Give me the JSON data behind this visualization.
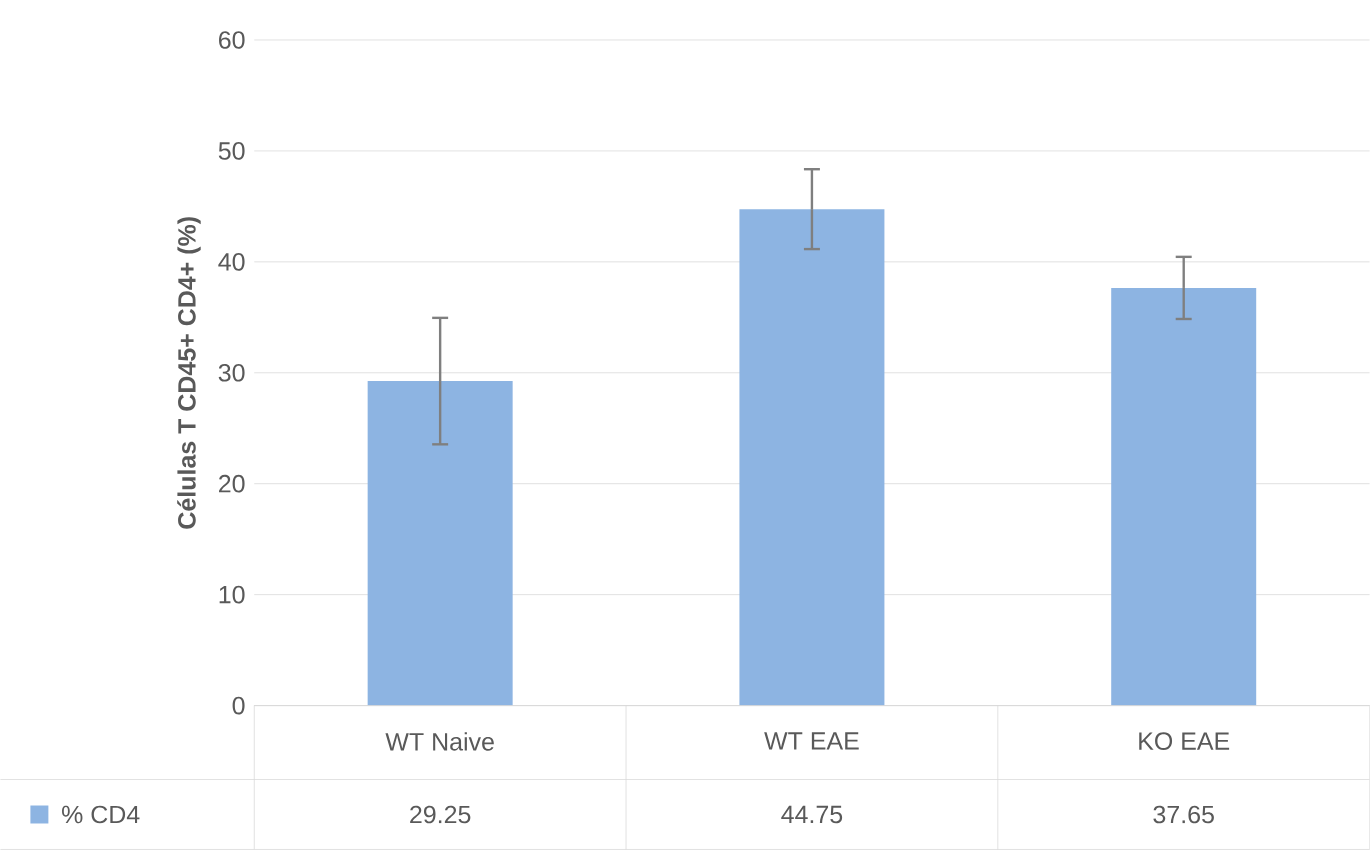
{
  "chart_data": {
    "type": "bar",
    "ylabel": "Células T CD45+ CD4+ (%)",
    "categories": [
      "WT Naive",
      "WT EAE",
      "KO EAE"
    ],
    "series": [
      {
        "name": "% CD4",
        "color": "#8db4e2",
        "values": [
          29.25,
          44.75,
          37.65
        ],
        "errors": [
          5.7,
          3.6,
          2.8
        ]
      }
    ],
    "ylim": [
      0,
      60
    ],
    "yticks": [
      0,
      10,
      20,
      30,
      40,
      50,
      60
    ],
    "grid": "y",
    "legend": "bottom",
    "data_labels": true
  }
}
